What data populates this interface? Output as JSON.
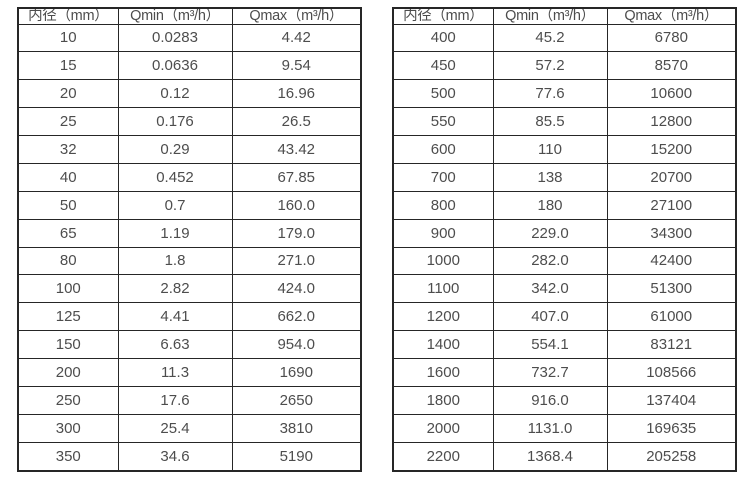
{
  "page": {
    "background_color": "#ffffff",
    "border_color": "#262626",
    "text_color": "#4d4d4d"
  },
  "tables": [
    {
      "name": "flow-table-small-diameters",
      "headers": [
        "内径（mm）",
        "Qmin（m³/h）",
        "Qmax（m³/h）"
      ],
      "rows": [
        [
          "10",
          "0.0283",
          "4.42"
        ],
        [
          "15",
          "0.0636",
          "9.54"
        ],
        [
          "20",
          "0.12",
          "16.96"
        ],
        [
          "25",
          "0.176",
          "26.5"
        ],
        [
          "32",
          "0.29",
          "43.42"
        ],
        [
          "40",
          "0.452",
          "67.85"
        ],
        [
          "50",
          "0.7",
          "160.0"
        ],
        [
          "65",
          "1.19",
          "179.0"
        ],
        [
          "80",
          "1.8",
          "271.0"
        ],
        [
          "100",
          "2.82",
          "424.0"
        ],
        [
          "125",
          "4.41",
          "662.0"
        ],
        [
          "150",
          "6.63",
          "954.0"
        ],
        [
          "200",
          "11.3",
          "1690"
        ],
        [
          "250",
          "17.6",
          "2650"
        ],
        [
          "300",
          "25.4",
          "3810"
        ],
        [
          "350",
          "34.6",
          "5190"
        ]
      ]
    },
    {
      "name": "flow-table-large-diameters",
      "headers": [
        "内径（mm）",
        "Qmin（m³/h）",
        "Qmax（m³/h）"
      ],
      "rows": [
        [
          "400",
          "45.2",
          "6780"
        ],
        [
          "450",
          "57.2",
          "8570"
        ],
        [
          "500",
          "77.6",
          "10600"
        ],
        [
          "550",
          "85.5",
          "12800"
        ],
        [
          "600",
          "110",
          "15200"
        ],
        [
          "700",
          "138",
          "20700"
        ],
        [
          "800",
          "180",
          "27100"
        ],
        [
          "900",
          "229.0",
          "34300"
        ],
        [
          "1000",
          "282.0",
          "42400"
        ],
        [
          "1100",
          "342.0",
          "51300"
        ],
        [
          "1200",
          "407.0",
          "61000"
        ],
        [
          "1400",
          "554.1",
          "83121"
        ],
        [
          "1600",
          "732.7",
          "108566"
        ],
        [
          "1800",
          "916.0",
          "137404"
        ],
        [
          "2000",
          "1131.0",
          "169635"
        ],
        [
          "2200",
          "1368.4",
          "205258"
        ]
      ]
    }
  ]
}
